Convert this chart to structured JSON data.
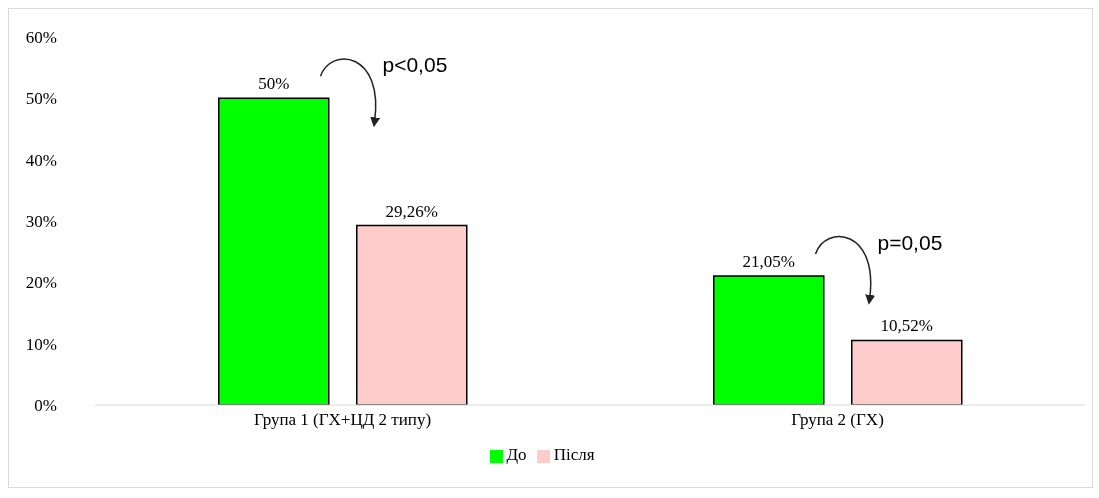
{
  "chart_data": {
    "type": "bar",
    "categories": [
      "Група 1 (ГХ+ЦД 2 типу)",
      "Група 2 (ГХ)"
    ],
    "series": [
      {
        "name": "До",
        "color": "#00ff00",
        "values": [
          50,
          21.05
        ],
        "value_labels": [
          "50%",
          "21,05%"
        ]
      },
      {
        "name": "Після",
        "color": "#ffcccc",
        "values": [
          29.26,
          10.52
        ],
        "value_labels": [
          "29,26%",
          "10,52%"
        ]
      }
    ],
    "ylim": [
      0,
      60
    ],
    "yticks": [
      {
        "value": 0,
        "label": "0%"
      },
      {
        "value": 10,
        "label": "10%"
      },
      {
        "value": 20,
        "label": "20%"
      },
      {
        "value": 30,
        "label": "30%"
      },
      {
        "value": 40,
        "label": "40%"
      },
      {
        "value": 50,
        "label": "50%"
      },
      {
        "value": 60,
        "label": "60%"
      }
    ],
    "annotations": [
      "p<0,05",
      "p=0,05"
    ],
    "grid": false,
    "legend": "bottom"
  }
}
